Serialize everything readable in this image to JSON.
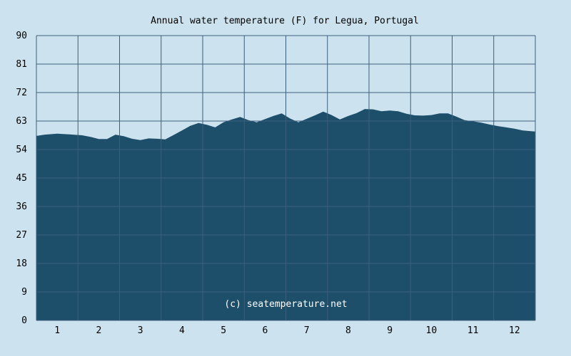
{
  "chart_data": {
    "type": "area",
    "title": "Annual water temperature (F) for Legua, Portugal",
    "xlabel": "",
    "ylabel": "",
    "x_categories": [
      "1",
      "2",
      "3",
      "4",
      "5",
      "6",
      "7",
      "8",
      "9",
      "10",
      "11",
      "12"
    ],
    "y_ticks": [
      0,
      9,
      18,
      27,
      36,
      45,
      54,
      63,
      72,
      81,
      90
    ],
    "ylim": [
      0,
      90
    ],
    "xlim": [
      0.5,
      12.5
    ],
    "grid": true,
    "colors": {
      "background": "#cce3ef",
      "fill": "#1e4f6a",
      "grid": "#3c5f7d"
    },
    "series": [
      {
        "x": [
          0.5,
          0.7,
          1.0,
          1.3,
          1.6,
          1.8,
          2.0,
          2.2,
          2.4,
          2.6,
          2.8,
          3.0,
          3.2,
          3.4,
          3.6,
          3.8,
          4.0,
          4.2,
          4.4,
          4.6,
          4.8,
          5.0,
          5.2,
          5.4,
          5.6,
          5.8,
          6.0,
          6.2,
          6.4,
          6.6,
          6.8,
          7.0,
          7.2,
          7.4,
          7.6,
          7.8,
          8.0,
          8.2,
          8.4,
          8.6,
          8.8,
          9.0,
          9.2,
          9.4,
          9.6,
          9.8,
          10.0,
          10.2,
          10.4,
          10.6,
          10.8,
          11.0,
          11.2,
          11.4,
          11.6,
          11.8,
          12.0,
          12.2,
          12.5
        ],
        "y": [
          58.3,
          58.7,
          59.0,
          58.8,
          58.5,
          58.0,
          57.3,
          57.3,
          58.7,
          58.2,
          57.4,
          57.0,
          57.5,
          57.4,
          57.2,
          58.6,
          60.0,
          61.5,
          62.4,
          61.8,
          61.0,
          62.6,
          63.5,
          64.3,
          63.3,
          62.6,
          63.6,
          64.6,
          65.4,
          63.8,
          62.6,
          63.7,
          64.8,
          66.0,
          64.9,
          63.5,
          64.6,
          65.5,
          66.8,
          66.7,
          66.1,
          66.3,
          66.1,
          65.3,
          64.8,
          64.7,
          64.9,
          65.4,
          65.4,
          64.4,
          63.3,
          62.9,
          62.5,
          61.9,
          61.4,
          61.0,
          60.6,
          60.0,
          59.7
        ]
      }
    ],
    "annotations": [
      {
        "text": "(c) seatemperature.net",
        "x": 6.5,
        "y": 5
      }
    ]
  }
}
